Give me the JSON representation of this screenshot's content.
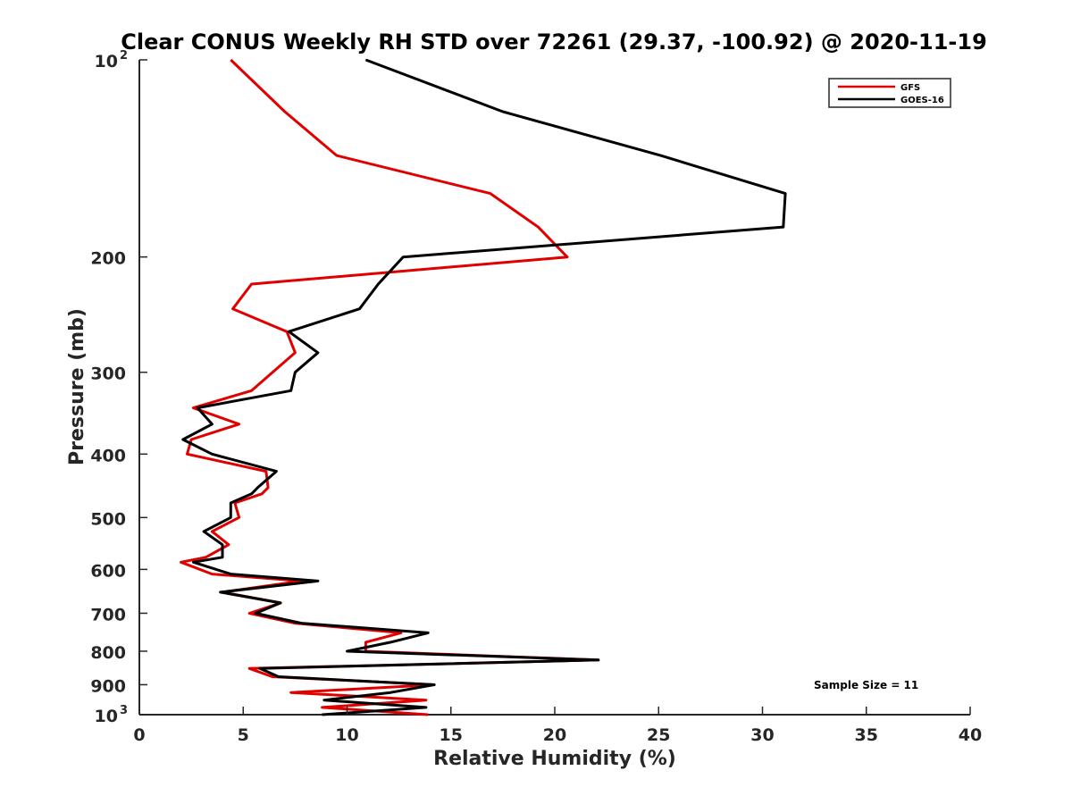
{
  "chart_data": {
    "type": "line",
    "title": "Clear CONUS Weekly RH STD over 72261 (29.37, -100.92) @ 2020-11-19",
    "xlabel": "Relative Humidity (%)",
    "ylabel": "Pressure (mb)",
    "xlim": [
      0,
      40
    ],
    "ylim": [
      100,
      1000
    ],
    "y_scale": "log",
    "y_reversed": true,
    "grid": false,
    "legend_position": "top-right",
    "annotation": "Sample Size = 11",
    "x_ticks": [
      "0",
      "5",
      "10",
      "15",
      "20",
      "25",
      "30",
      "35",
      "40"
    ],
    "x_tick_values": [
      0,
      5,
      10,
      15,
      20,
      25,
      30,
      35,
      40
    ],
    "y_ticks": [
      {
        "value": 100,
        "base": "10",
        "sup": "2"
      },
      {
        "value": 200,
        "base": "200",
        "sup": ""
      },
      {
        "value": 300,
        "base": "300",
        "sup": ""
      },
      {
        "value": 400,
        "base": "400",
        "sup": ""
      },
      {
        "value": 500,
        "base": "500",
        "sup": ""
      },
      {
        "value": 600,
        "base": "600",
        "sup": ""
      },
      {
        "value": 700,
        "base": "700",
        "sup": ""
      },
      {
        "value": 800,
        "base": "800",
        "sup": ""
      },
      {
        "value": 900,
        "base": "900",
        "sup": ""
      },
      {
        "value": 1000,
        "base": "10",
        "sup": "3"
      }
    ],
    "series": [
      {
        "name": "GFS",
        "color": "#e00000",
        "points": [
          [
            4.4,
            100
          ],
          [
            7.0,
            120
          ],
          [
            9.5,
            140
          ],
          [
            16.9,
            160
          ],
          [
            19.2,
            180
          ],
          [
            20.6,
            200
          ],
          [
            5.4,
            220
          ],
          [
            4.5,
            240
          ],
          [
            7.1,
            260
          ],
          [
            7.5,
            280
          ],
          [
            5.4,
            320
          ],
          [
            2.6,
            340
          ],
          [
            4.8,
            360
          ],
          [
            2.5,
            380
          ],
          [
            2.3,
            400
          ],
          [
            6.1,
            425
          ],
          [
            6.2,
            450
          ],
          [
            5.9,
            460
          ],
          [
            4.6,
            475
          ],
          [
            4.8,
            500
          ],
          [
            3.5,
            525
          ],
          [
            4.3,
            550
          ],
          [
            3.2,
            575
          ],
          [
            2.0,
            585
          ],
          [
            3.5,
            610
          ],
          [
            7.8,
            625
          ],
          [
            4.0,
            650
          ],
          [
            6.8,
            675
          ],
          [
            5.3,
            700
          ],
          [
            7.5,
            725
          ],
          [
            12.6,
            750
          ],
          [
            10.9,
            775
          ],
          [
            10.9,
            800
          ],
          [
            22.1,
            825
          ],
          [
            5.3,
            850
          ],
          [
            6.4,
            875
          ],
          [
            14.2,
            900
          ],
          [
            7.3,
            925
          ],
          [
            13.8,
            950
          ],
          [
            8.8,
            975
          ],
          [
            13.9,
            1000
          ]
        ]
      },
      {
        "name": "GOES-16",
        "color": "#000000",
        "points": [
          [
            10.9,
            100
          ],
          [
            17.5,
            120
          ],
          [
            25.1,
            140
          ],
          [
            31.1,
            160
          ],
          [
            31.0,
            180
          ],
          [
            12.7,
            200
          ],
          [
            11.5,
            220
          ],
          [
            10.6,
            240
          ],
          [
            7.2,
            260
          ],
          [
            8.6,
            280
          ],
          [
            7.5,
            300
          ],
          [
            7.3,
            320
          ],
          [
            2.8,
            340
          ],
          [
            3.5,
            360
          ],
          [
            2.1,
            380
          ],
          [
            3.5,
            400
          ],
          [
            6.6,
            425
          ],
          [
            5.7,
            450
          ],
          [
            5.4,
            460
          ],
          [
            4.4,
            475
          ],
          [
            4.4,
            500
          ],
          [
            3.1,
            525
          ],
          [
            4.0,
            550
          ],
          [
            4.0,
            575
          ],
          [
            2.6,
            585
          ],
          [
            4.4,
            610
          ],
          [
            8.6,
            625
          ],
          [
            3.9,
            650
          ],
          [
            6.8,
            675
          ],
          [
            5.6,
            700
          ],
          [
            7.8,
            725
          ],
          [
            13.9,
            750
          ],
          [
            12.1,
            775
          ],
          [
            10.0,
            800
          ],
          [
            22.1,
            825
          ],
          [
            5.8,
            850
          ],
          [
            6.7,
            875
          ],
          [
            14.2,
            900
          ],
          [
            12.1,
            925
          ],
          [
            8.9,
            950
          ],
          [
            13.8,
            975
          ],
          [
            8.8,
            1000
          ]
        ]
      }
    ]
  }
}
